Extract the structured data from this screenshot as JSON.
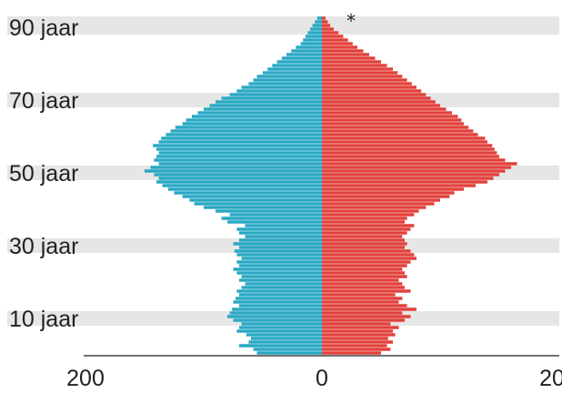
{
  "chart_data": {
    "type": "bar",
    "orientation": "horizontal",
    "layout": "population-pyramid",
    "title": "",
    "xlabel": "",
    "ylabel": "",
    "xlim": [
      -200,
      200
    ],
    "ylim": [
      0,
      93
    ],
    "x_ticks": [
      -200,
      0,
      200
    ],
    "x_tick_labels": [
      "200",
      "0",
      "200"
    ],
    "y_ticks": [
      10,
      30,
      50,
      70,
      90
    ],
    "y_tick_labels": [
      "10 jaar",
      "30 jaar",
      "50 jaar",
      "70 jaar",
      "90 jaar"
    ],
    "age_band_shading": [
      [
        8,
        12
      ],
      [
        28,
        32
      ],
      [
        48,
        52
      ],
      [
        68,
        72
      ],
      [
        88,
        93
      ]
    ],
    "annotation": "*",
    "ages": [
      0,
      1,
      2,
      3,
      4,
      5,
      6,
      7,
      8,
      9,
      10,
      11,
      12,
      13,
      14,
      15,
      16,
      17,
      18,
      19,
      20,
      21,
      22,
      23,
      24,
      25,
      26,
      27,
      28,
      29,
      30,
      31,
      32,
      33,
      34,
      35,
      36,
      37,
      38,
      39,
      40,
      41,
      42,
      43,
      44,
      45,
      46,
      47,
      48,
      49,
      50,
      51,
      52,
      53,
      54,
      55,
      56,
      57,
      58,
      59,
      60,
      61,
      62,
      63,
      64,
      65,
      66,
      67,
      68,
      69,
      70,
      71,
      72,
      73,
      74,
      75,
      76,
      77,
      78,
      79,
      80,
      81,
      82,
      83,
      84,
      85,
      86,
      87,
      88,
      89,
      90,
      91,
      92
    ],
    "series": [
      {
        "side": "left",
        "color": "#2aa8c4",
        "values": [
          55,
          58,
          70,
          62,
          60,
          64,
          72,
          70,
          68,
          75,
          80,
          78,
          76,
          70,
          75,
          73,
          70,
          72,
          68,
          65,
          70,
          68,
          72,
          75,
          70,
          72,
          68,
          72,
          74,
          70,
          75,
          70,
          65,
          70,
          72,
          65,
          80,
          85,
          78,
          90,
          100,
          108,
          112,
          118,
          125,
          130,
          135,
          140,
          138,
          142,
          150,
          145,
          138,
          142,
          140,
          138,
          140,
          143,
          138,
          136,
          132,
          128,
          124,
          118,
          115,
          110,
          105,
          100,
          95,
          90,
          85,
          78,
          72,
          68,
          62,
          58,
          55,
          50,
          46,
          42,
          38,
          34,
          30,
          26,
          22,
          18,
          16,
          14,
          12,
          10,
          8,
          6,
          4
        ]
      },
      {
        "side": "right",
        "color": "#e2413b",
        "values": [
          50,
          58,
          55,
          60,
          56,
          62,
          60,
          65,
          58,
          70,
          75,
          68,
          80,
          72,
          65,
          68,
          62,
          75,
          70,
          68,
          65,
          72,
          70,
          68,
          72,
          75,
          80,
          78,
          75,
          70,
          72,
          70,
          68,
          72,
          75,
          78,
          70,
          72,
          78,
          82,
          88,
          95,
          100,
          108,
          112,
          120,
          130,
          140,
          145,
          150,
          155,
          160,
          165,
          155,
          150,
          148,
          146,
          144,
          140,
          138,
          132,
          128,
          124,
          120,
          118,
          115,
          110,
          105,
          100,
          96,
          92,
          88,
          84,
          80,
          76,
          72,
          68,
          64,
          60,
          55,
          50,
          45,
          40,
          35,
          30,
          26,
          22,
          18,
          14,
          10,
          7,
          5,
          3
        ]
      }
    ]
  }
}
